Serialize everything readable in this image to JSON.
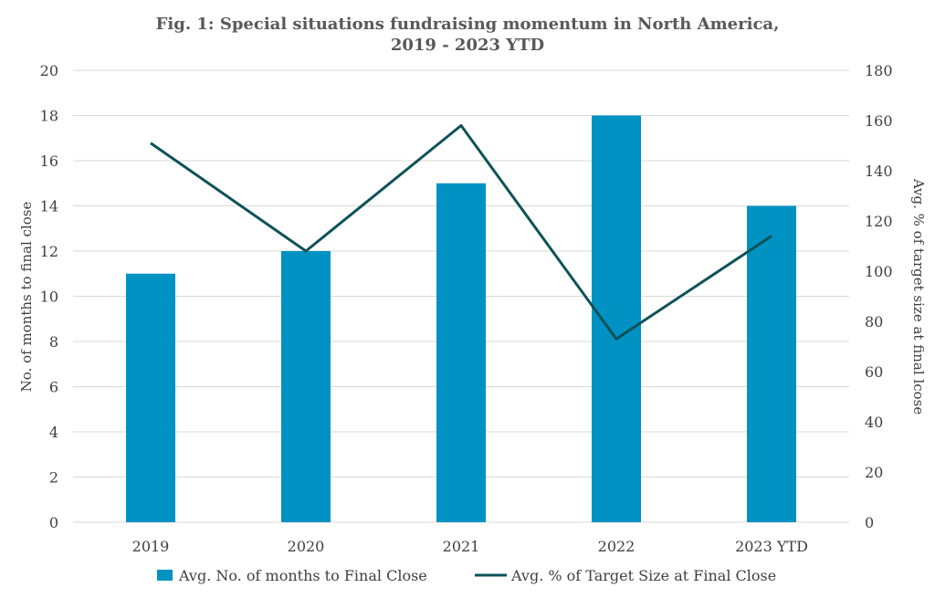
{
  "chart_data": {
    "type": "bar",
    "title_lines": [
      "Fig. 1: Special situations fundraising momentum in North America,",
      "2019 - 2023 YTD"
    ],
    "categories": [
      "2019",
      "2020",
      "2021",
      "2022",
      "2023 YTD"
    ],
    "series": [
      {
        "name": "Avg. No. of months to Final Close",
        "type": "bar",
        "axis": "left",
        "color": "#0092c2",
        "values": [
          11,
          12,
          15,
          18,
          14
        ]
      },
      {
        "name": "Avg. % of Target Size at Final Close",
        "type": "line",
        "axis": "right",
        "color": "#0e5257",
        "values": [
          151,
          108,
          158,
          73,
          114
        ]
      }
    ],
    "y_left": {
      "label": "No. of months to final close",
      "range": [
        0,
        20
      ],
      "ticks": [
        "0",
        "2",
        "4",
        "6",
        "8",
        "10",
        "12",
        "14",
        "16",
        "18",
        "20"
      ]
    },
    "y_right": {
      "label": "Avg. % of target size at final lcose",
      "range": [
        0,
        180
      ],
      "ticks": [
        "0",
        "20",
        "40",
        "60",
        "80",
        "100",
        "120",
        "140",
        "160",
        "180"
      ]
    },
    "grid": true,
    "legend": "bottom"
  }
}
